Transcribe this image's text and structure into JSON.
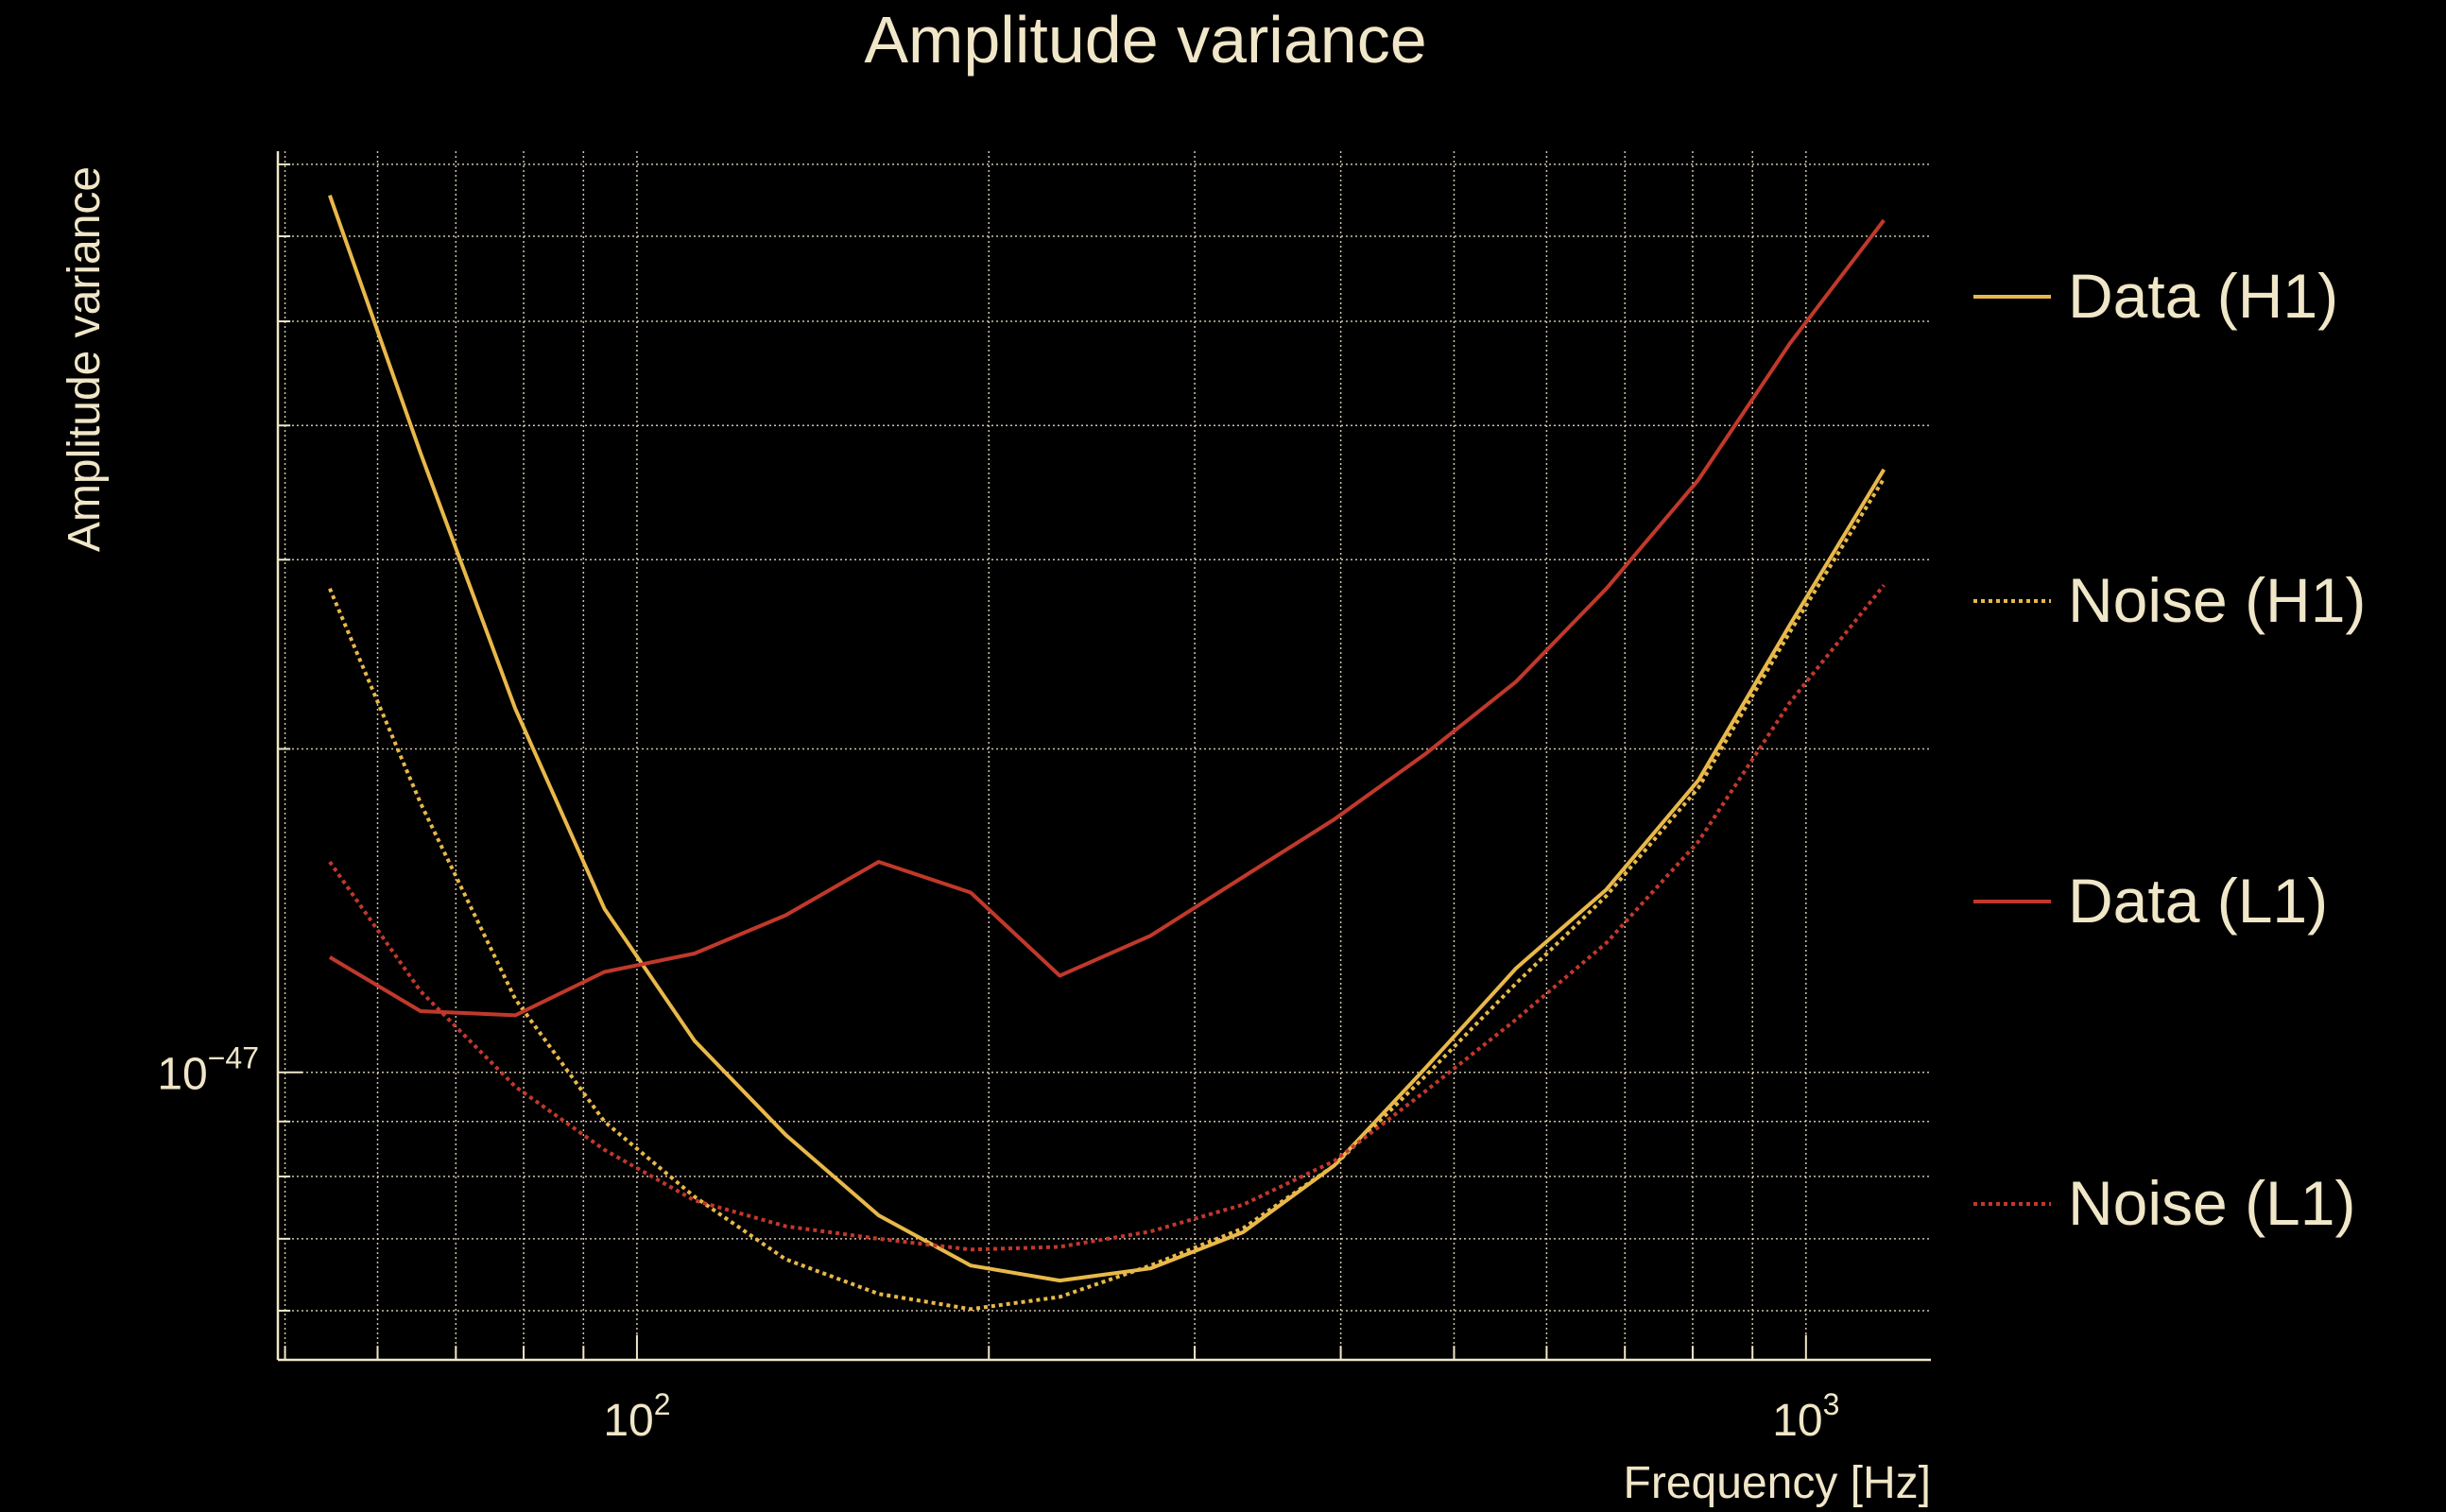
{
  "chart_data": {
    "type": "line",
    "title": "Amplitude variance",
    "xlabel": "Frequency [Hz]",
    "ylabel": "Amplitude variance",
    "xscale": "log",
    "yscale": "log",
    "xlim": [
      49.3,
      1279
    ],
    "ylim": [
      5.4e-48,
      7.2e-47
    ],
    "x_ticks": [
      {
        "value": 100,
        "base": "10",
        "exp": "2"
      },
      {
        "value": 1000,
        "base": "10",
        "exp": "3"
      }
    ],
    "y_ticks": [
      {
        "value": 1e-47,
        "base": "10",
        "exp": "−47"
      }
    ],
    "grid": true,
    "legend_position": "right",
    "x": [
      54.6,
      65.3,
      78.7,
      93.8,
      112,
      134,
      161,
      193,
      230,
      275,
      330,
      395,
      473,
      565,
      675,
      809,
      969,
      1166
    ],
    "series": [
      {
        "name": "Data (H1)",
        "color": "#e8b84a",
        "style": "solid",
        "values": [
          6.55e-47,
          3.77e-47,
          2.18e-47,
          1.42e-47,
          1.07e-47,
          8.75e-48,
          7.36e-48,
          6.61e-48,
          6.4e-48,
          6.57e-48,
          7.1e-48,
          8.19e-48,
          1.01e-47,
          1.25e-47,
          1.48e-47,
          1.87e-47,
          2.61e-47,
          3.64e-47
        ]
      },
      {
        "name": "Noise (H1)",
        "color": "#e8b84a",
        "style": "dotted",
        "values": [
          2.82e-47,
          1.78e-47,
          1.17e-47,
          9e-48,
          7.66e-48,
          6.7e-48,
          6.22e-48,
          6.02e-48,
          6.18e-48,
          6.61e-48,
          7.16e-48,
          8.19e-48,
          9.93e-48,
          1.21e-47,
          1.46e-47,
          1.84e-47,
          2.57e-47,
          3.57e-47
        ]
      },
      {
        "name": "Data (L1)",
        "color": "#c0392b",
        "style": "solid",
        "values": [
          1.28e-47,
          1.14e-47,
          1.13e-47,
          1.24e-47,
          1.29e-47,
          1.4e-47,
          1.57e-47,
          1.47e-47,
          1.23e-47,
          1.34e-47,
          1.52e-47,
          1.72e-47,
          1.98e-47,
          2.31e-47,
          2.82e-47,
          3.56e-47,
          4.77e-47,
          6.21e-47
        ]
      },
      {
        "name": "Noise (L1)",
        "color": "#c0392b",
        "style": "dotted",
        "values": [
          1.57e-47,
          1.19e-47,
          9.7e-48,
          8.47e-48,
          7.6e-48,
          7.19e-48,
          7e-48,
          6.84e-48,
          6.88e-48,
          7.11e-48,
          7.53e-48,
          8.27e-48,
          9.61e-48,
          1.12e-47,
          1.32e-47,
          1.64e-47,
          2.21e-47,
          2.84e-47
        ]
      }
    ]
  }
}
